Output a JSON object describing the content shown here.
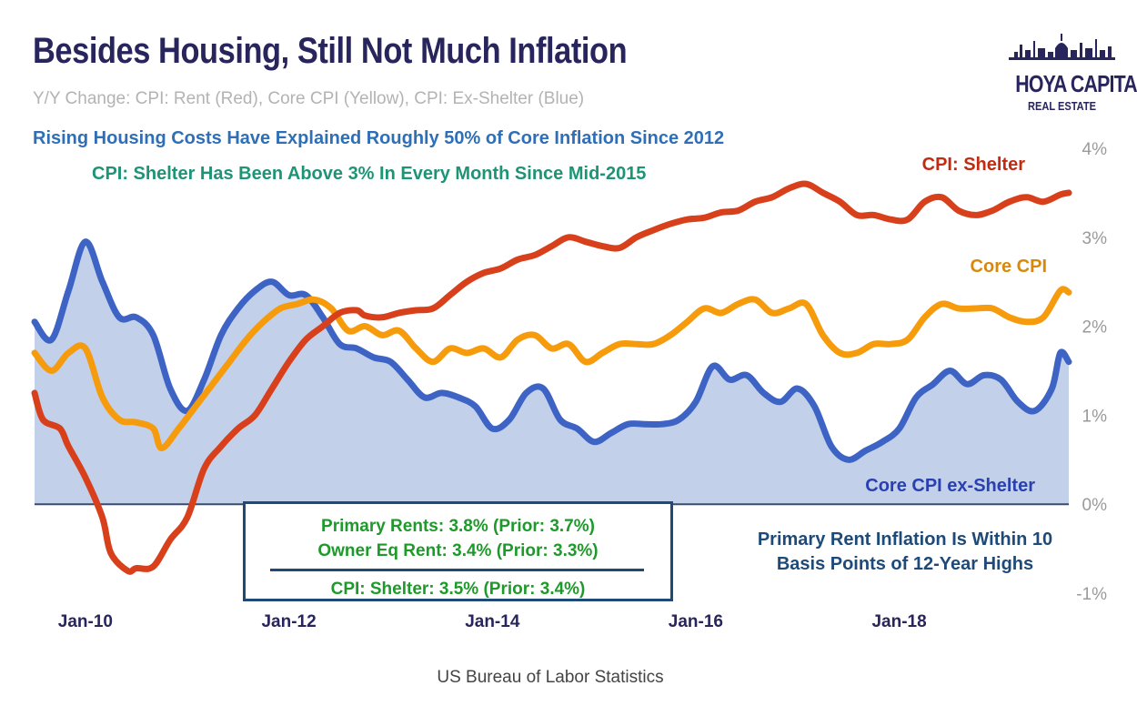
{
  "header": {
    "title": "Besides Housing, Still Not Much Inflation",
    "subtitle": "Y/Y Change: CPI: Rent (Red), Core CPI (Yellow), CPI: Ex-Shelter (Blue)",
    "note_blue": "Rising Housing Costs Have Explained Roughly 50% of Core Inflation Since 2012",
    "note_teal": "CPI: Shelter Has Been Above 3% In Every Month Since Mid-2015"
  },
  "logo": {
    "line1": "HOYA CAPITAL",
    "line2": "REAL ESTATE"
  },
  "footer": {
    "source": "US Bureau of Labor Statistics"
  },
  "callout_box": {
    "line1": "Primary Rents: 3.8% (Prior: 3.7%)",
    "line2": "Owner Eq Rent: 3.4% (Prior: 3.3%)",
    "line3": "CPI: Shelter: 3.5% (Prior: 3.4%)"
  },
  "right_note": {
    "line1": "Primary Rent Inflation Is Within 10",
    "line2": "Basis Points of 12-Year Highs"
  },
  "colors": {
    "shelter": "#d8401c",
    "core": "#f59b0c",
    "ex_shelter": "#3d63c4",
    "ex_shelter_fill": "#bccbe8",
    "title": "#27255c",
    "label_shelter": "#c22a12",
    "label_core": "#d9890a",
    "label_ex_shelter": "#2940b0",
    "zero_line": "#3a4a6b"
  },
  "chart_data": {
    "type": "line",
    "xlabel": "",
    "ylabel": "",
    "x_range": [
      "2009-07",
      "2019-09"
    ],
    "x_ticks": [
      "Jan-10",
      "Jan-12",
      "Jan-14",
      "Jan-16",
      "Jan-18"
    ],
    "y_ticks": [
      "4%",
      "3%",
      "2%",
      "1%",
      "0%",
      "-1%"
    ],
    "ylim": [
      -1,
      4
    ],
    "grid": false,
    "series": [
      {
        "name": "CPI: Shelter",
        "style": "line",
        "points": [
          [
            "2009-07",
            1.25
          ],
          [
            "2009-08",
            0.95
          ],
          [
            "2009-10",
            0.85
          ],
          [
            "2009-11",
            0.65
          ],
          [
            "2010-01",
            0.3
          ],
          [
            "2010-03",
            -0.15
          ],
          [
            "2010-04",
            -0.55
          ],
          [
            "2010-06",
            -0.75
          ],
          [
            "2010-07",
            -0.72
          ],
          [
            "2010-09",
            -0.7
          ],
          [
            "2010-11",
            -0.4
          ],
          [
            "2011-01",
            -0.15
          ],
          [
            "2011-03",
            0.4
          ],
          [
            "2011-05",
            0.65
          ],
          [
            "2011-07",
            0.85
          ],
          [
            "2011-09",
            1.0
          ],
          [
            "2011-11",
            1.3
          ],
          [
            "2012-01",
            1.6
          ],
          [
            "2012-03",
            1.85
          ],
          [
            "2012-05",
            2.0
          ],
          [
            "2012-07",
            2.15
          ],
          [
            "2012-09",
            2.18
          ],
          [
            "2012-10",
            2.12
          ],
          [
            "2012-12",
            2.1
          ],
          [
            "2013-02",
            2.15
          ],
          [
            "2013-04",
            2.18
          ],
          [
            "2013-06",
            2.2
          ],
          [
            "2013-08",
            2.35
          ],
          [
            "2013-10",
            2.5
          ],
          [
            "2013-12",
            2.6
          ],
          [
            "2014-02",
            2.65
          ],
          [
            "2014-04",
            2.75
          ],
          [
            "2014-06",
            2.8
          ],
          [
            "2014-08",
            2.9
          ],
          [
            "2014-10",
            3.0
          ],
          [
            "2014-12",
            2.95
          ],
          [
            "2015-02",
            2.9
          ],
          [
            "2015-04",
            2.88
          ],
          [
            "2015-06",
            3.0
          ],
          [
            "2015-08",
            3.08
          ],
          [
            "2015-10",
            3.15
          ],
          [
            "2015-12",
            3.2
          ],
          [
            "2016-02",
            3.22
          ],
          [
            "2016-04",
            3.28
          ],
          [
            "2016-06",
            3.3
          ],
          [
            "2016-08",
            3.4
          ],
          [
            "2016-10",
            3.45
          ],
          [
            "2016-12",
            3.55
          ],
          [
            "2017-02",
            3.6
          ],
          [
            "2017-04",
            3.5
          ],
          [
            "2017-06",
            3.4
          ],
          [
            "2017-08",
            3.25
          ],
          [
            "2017-10",
            3.25
          ],
          [
            "2017-12",
            3.2
          ],
          [
            "2018-02",
            3.2
          ],
          [
            "2018-04",
            3.4
          ],
          [
            "2018-06",
            3.45
          ],
          [
            "2018-08",
            3.3
          ],
          [
            "2018-10",
            3.25
          ],
          [
            "2018-12",
            3.3
          ],
          [
            "2019-02",
            3.4
          ],
          [
            "2019-04",
            3.45
          ],
          [
            "2019-06",
            3.4
          ],
          [
            "2019-08",
            3.48
          ],
          [
            "2019-09",
            3.5
          ]
        ]
      },
      {
        "name": "Core CPI",
        "style": "line",
        "points": [
          [
            "2009-07",
            1.7
          ],
          [
            "2009-09",
            1.5
          ],
          [
            "2009-11",
            1.7
          ],
          [
            "2010-01",
            1.75
          ],
          [
            "2010-03",
            1.2
          ],
          [
            "2010-05",
            0.95
          ],
          [
            "2010-07",
            0.92
          ],
          [
            "2010-09",
            0.85
          ],
          [
            "2010-10",
            0.63
          ],
          [
            "2010-12",
            0.85
          ],
          [
            "2011-02",
            1.1
          ],
          [
            "2011-04",
            1.35
          ],
          [
            "2011-06",
            1.6
          ],
          [
            "2011-08",
            1.85
          ],
          [
            "2011-10",
            2.05
          ],
          [
            "2011-12",
            2.2
          ],
          [
            "2012-02",
            2.25
          ],
          [
            "2012-04",
            2.3
          ],
          [
            "2012-06",
            2.2
          ],
          [
            "2012-08",
            1.95
          ],
          [
            "2012-10",
            2.0
          ],
          [
            "2012-12",
            1.9
          ],
          [
            "2013-02",
            1.95
          ],
          [
            "2013-04",
            1.75
          ],
          [
            "2013-06",
            1.6
          ],
          [
            "2013-08",
            1.75
          ],
          [
            "2013-10",
            1.7
          ],
          [
            "2013-12",
            1.75
          ],
          [
            "2014-02",
            1.65
          ],
          [
            "2014-04",
            1.85
          ],
          [
            "2014-06",
            1.9
          ],
          [
            "2014-08",
            1.75
          ],
          [
            "2014-10",
            1.8
          ],
          [
            "2014-12",
            1.6
          ],
          [
            "2015-02",
            1.7
          ],
          [
            "2015-04",
            1.8
          ],
          [
            "2015-06",
            1.8
          ],
          [
            "2015-08",
            1.8
          ],
          [
            "2015-10",
            1.9
          ],
          [
            "2015-12",
            2.05
          ],
          [
            "2016-02",
            2.2
          ],
          [
            "2016-04",
            2.15
          ],
          [
            "2016-06",
            2.25
          ],
          [
            "2016-08",
            2.3
          ],
          [
            "2016-10",
            2.15
          ],
          [
            "2016-12",
            2.2
          ],
          [
            "2017-02",
            2.25
          ],
          [
            "2017-04",
            1.9
          ],
          [
            "2017-06",
            1.7
          ],
          [
            "2017-08",
            1.7
          ],
          [
            "2017-10",
            1.8
          ],
          [
            "2017-12",
            1.8
          ],
          [
            "2018-02",
            1.85
          ],
          [
            "2018-04",
            2.1
          ],
          [
            "2018-06",
            2.25
          ],
          [
            "2018-08",
            2.2
          ],
          [
            "2018-10",
            2.2
          ],
          [
            "2018-12",
            2.2
          ],
          [
            "2019-02",
            2.1
          ],
          [
            "2019-04",
            2.05
          ],
          [
            "2019-06",
            2.1
          ],
          [
            "2019-08",
            2.4
          ],
          [
            "2019-09",
            2.38
          ]
        ]
      },
      {
        "name": "Core CPI ex-Shelter",
        "style": "area",
        "points": [
          [
            "2009-07",
            2.05
          ],
          [
            "2009-09",
            1.85
          ],
          [
            "2009-11",
            2.4
          ],
          [
            "2010-01",
            2.95
          ],
          [
            "2010-03",
            2.5
          ],
          [
            "2010-05",
            2.1
          ],
          [
            "2010-07",
            2.1
          ],
          [
            "2010-09",
            1.9
          ],
          [
            "2010-11",
            1.3
          ],
          [
            "2011-01",
            1.05
          ],
          [
            "2011-03",
            1.4
          ],
          [
            "2011-05",
            1.9
          ],
          [
            "2011-07",
            2.2
          ],
          [
            "2011-09",
            2.4
          ],
          [
            "2011-11",
            2.5
          ],
          [
            "2012-01",
            2.35
          ],
          [
            "2012-03",
            2.35
          ],
          [
            "2012-05",
            2.1
          ],
          [
            "2012-07",
            1.8
          ],
          [
            "2012-09",
            1.75
          ],
          [
            "2012-11",
            1.65
          ],
          [
            "2013-01",
            1.6
          ],
          [
            "2013-03",
            1.4
          ],
          [
            "2013-05",
            1.2
          ],
          [
            "2013-07",
            1.25
          ],
          [
            "2013-09",
            1.2
          ],
          [
            "2013-11",
            1.1
          ],
          [
            "2014-01",
            0.85
          ],
          [
            "2014-03",
            0.95
          ],
          [
            "2014-05",
            1.25
          ],
          [
            "2014-07",
            1.3
          ],
          [
            "2014-09",
            0.95
          ],
          [
            "2014-11",
            0.85
          ],
          [
            "2015-01",
            0.7
          ],
          [
            "2015-03",
            0.8
          ],
          [
            "2015-05",
            0.9
          ],
          [
            "2015-07",
            0.9
          ],
          [
            "2015-09",
            0.9
          ],
          [
            "2015-11",
            0.95
          ],
          [
            "2016-01",
            1.15
          ],
          [
            "2016-03",
            1.55
          ],
          [
            "2016-05",
            1.4
          ],
          [
            "2016-07",
            1.45
          ],
          [
            "2016-09",
            1.25
          ],
          [
            "2016-11",
            1.15
          ],
          [
            "2017-01",
            1.3
          ],
          [
            "2017-03",
            1.1
          ],
          [
            "2017-05",
            0.65
          ],
          [
            "2017-07",
            0.5
          ],
          [
            "2017-09",
            0.6
          ],
          [
            "2017-11",
            0.7
          ],
          [
            "2018-01",
            0.85
          ],
          [
            "2018-03",
            1.2
          ],
          [
            "2018-05",
            1.35
          ],
          [
            "2018-07",
            1.5
          ],
          [
            "2018-09",
            1.35
          ],
          [
            "2018-11",
            1.45
          ],
          [
            "2019-01",
            1.4
          ],
          [
            "2019-03",
            1.15
          ],
          [
            "2019-05",
            1.05
          ],
          [
            "2019-07",
            1.3
          ],
          [
            "2019-08",
            1.7
          ],
          [
            "2019-09",
            1.6
          ]
        ]
      }
    ],
    "labels": {
      "shelter": "CPI: Shelter",
      "core": "Core CPI",
      "ex_shelter": "Core CPI ex-Shelter"
    }
  }
}
